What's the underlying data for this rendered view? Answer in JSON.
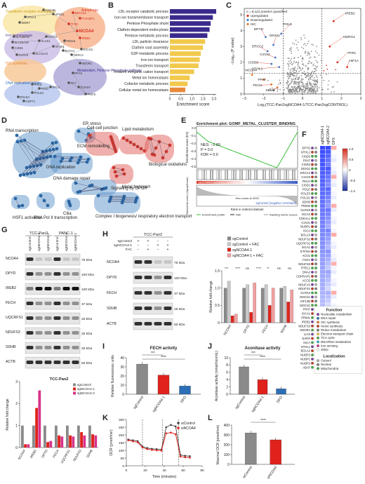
{
  "panel_labels": {
    "A": "A",
    "B": "B",
    "C": "C",
    "D": "D",
    "E": "E",
    "F": "F",
    "G": "G",
    "H": "H",
    "I": "I",
    "J": "J",
    "K": "K",
    "L": "L"
  },
  "colors": {
    "upregulated": "#d7301f",
    "downregulated": "#3a7bd5",
    "isc": "#e08030",
    "purple": "#5b3a94",
    "yellow": "#f4c542",
    "bar_purple": "#3b2a8c",
    "bar_yellow": "#f2c94c",
    "grey": "#9a9a9a",
    "red": "#e0221c",
    "pink": "#d6338a",
    "blue": "#2b6fb6"
  },
  "panelA": {
    "clusters": [
      "Transferrin receptor endocytosis",
      "Iron homeostasis",
      "Autophagy",
      "ISC synthesis",
      "DNA replication/ repair",
      "Metabolism, Pentose Phosphate pathway"
    ],
    "genes": [
      "AAGAB",
      "AP2S1",
      "RB1CD1",
      "AP2A1",
      "WDR7",
      "TFRC",
      "NCOA4",
      "SLC25A37",
      "TAX1BP1",
      "SLC25A28",
      "ALAS1",
      "IREB2",
      "EGLN1",
      "CISD1",
      "CIAO3",
      "GLRX3",
      "SLC11A2",
      "AP1B1",
      "FBXL5",
      "BACH1",
      "HERC2",
      "NDOR1",
      "POLD1",
      "FEN1",
      "RFC1",
      "POLE",
      "TKT",
      "COASY",
      "PMVK",
      "GSPT1",
      "POLE4",
      "PFAS"
    ]
  },
  "panelB": {
    "chart_data": {
      "type": "bar",
      "orientation": "horizontal",
      "categories": [
        "LDL receptor catabolic process",
        "Iron ion transmembrane transport",
        "Pentose Phosphate shunt",
        "Clathrin-dependent endocytosis",
        "Pentose metabolic process",
        "LDL particle clearance",
        "Clathrin coat assembly",
        "G3P metabolic process",
        "Iron ion transport",
        "Transferrin transport",
        "Trivalent inorganic cation transport",
        "Metal ion homeostasis",
        "Cofactor metabolic process",
        "Cellular metal ion homeostasis"
      ],
      "values": [
        2.1,
        1.95,
        1.85,
        1.8,
        1.7,
        1.6,
        1.5,
        1.4,
        1.35,
        1.3,
        1.1,
        0.9,
        0.8,
        0.7
      ],
      "bar_colors": [
        "purple",
        "purple",
        "purple",
        "purple",
        "purple",
        "yellow",
        "yellow",
        "yellow",
        "yellow",
        "yellow",
        "yellow",
        "yellow",
        "yellow",
        "orange"
      ],
      "xlabel": "Enrichment score",
      "ticks": [
        "0",
        "0.5",
        "1.0",
        "1.5",
        "2.0"
      ],
      "xlim": [
        0,
        2.1
      ]
    }
  },
  "panelC": {
    "chart_data": {
      "type": "scatter",
      "xlabel": "Log₂(TCC-Pan2sgNCOA4-1/TCC-Pan2sgCONTROL)",
      "ylabel": "−Log₁₀ (P value)",
      "xticks": [
        "−3",
        "−2",
        "−1",
        "0",
        "1",
        "2",
        "3"
      ],
      "yticks": [
        "0",
        "1",
        "2",
        "3",
        "4",
        "5"
      ],
      "xlim": [
        -3,
        3
      ],
      "ylim": [
        0,
        5.4
      ],
      "legend": [
        "n = 8,122 proteins quantified",
        "Upregulated",
        "Downregulated",
        "ISC"
      ],
      "labels_left": [
        "DPYD",
        "POLE",
        "DDX11",
        "ERCC2",
        "CIAO3",
        "CISD3",
        "NTHL1",
        "NCOA4",
        "PPAT",
        "FECH",
        "SDHB"
      ],
      "labels_right": [
        "IREB2",
        "NDRG1",
        "TFRC",
        "HIF1A"
      ],
      "hline_y": 1.3,
      "vlines_x": [
        -1,
        1
      ]
    }
  },
  "panelD": {
    "modules": [
      "ER stress",
      "ECM remodelling",
      "Cell-cell junction",
      "Lipid metabolism",
      "RNA transcription",
      "Biological oxidations",
      "DNA replication",
      "Metal transport",
      "DNA damage repair",
      "Signaling by GPCR",
      "HSF1 activation",
      "RNA Pol II transcription",
      "Cilia",
      "Complex I biogenesis/ respiratory electron transport"
    ]
  },
  "panelE": {
    "title": "Enrichment plot: GOMF_METAL_CLUSTER_BINDING",
    "stats": [
      "NES: −2.69",
      "P = 0.0",
      "FDR = 0.0"
    ],
    "ylabel_top": "Enrichment score (ES)",
    "ylabel_bottom": "Ranked list metric (Signal2Noise)",
    "pos_label": "sgNCOA4-1 (positively correlated)",
    "neg_label": "sgControl (negative correlated)",
    "zero_label": "Zero cross at 4226",
    "xlabel": "Rank in ordered dataset",
    "legend": [
      "Enrichment profile",
      "Hits",
      "Ranking metric scores"
    ],
    "yticks": [
      "0.0",
      "−0.1",
      "−0.2",
      "−0.3",
      "−0.4",
      "−0.5"
    ]
  },
  "panelF": {
    "columns": [
      "sgNCOA4-1",
      "sgNCOA4-2",
      "DFX"
    ],
    "genes": [
      "DPYD",
      "NTHL1",
      "CISD2",
      "PPAT",
      "CISD3",
      "DDX11",
      "ERCC2",
      "CIAO3",
      "FECH",
      "CISD1",
      "POLE",
      "POLE3",
      "POLD1",
      "SDHB",
      "PRIM2",
      "GLRX5",
      "ISCA2",
      "CDKAL1",
      "CIAO1",
      "NUBPL",
      "ISCU",
      "BOLA3",
      "NDUFS2",
      "UQCRFS1",
      "ISCA1",
      "ETFDH",
      "ACO1",
      "FDX1",
      "NDUFS8",
      "RTEL1",
      "DNA2",
      "CDKRAP1",
      "ACO2",
      "NDUFV2",
      "NDUFS1",
      "GLRX3",
      "MOCS1",
      "KIF13B",
      "MOCS1",
      "PPAT",
      "ISCA1",
      "PRIM1",
      "IREB2",
      "NDUFS3",
      "NDOR1",
      "LIAS",
      "NARS",
      "ISCA",
      "NTHL1",
      "BOLA2",
      "NUBP2",
      "NUBP1",
      "NUBP2",
      "ABAT"
    ],
    "scale_max": "1.0",
    "scale_ticks": [
      "1.0",
      "0.5",
      "0",
      "−0.5",
      "−1.0"
    ],
    "function_title": "Function",
    "functions": [
      "Nucleotide metabolism",
      "DNA repair",
      "ISC synthesis",
      "Heme synthesis",
      "Redox metabolism",
      "Electron transport chain",
      "TCA cycle",
      "DNA/RNA metabolism",
      "Iron sensing",
      "Other"
    ],
    "function_colors": [
      "#7b3fa0",
      "#2b6fb6",
      "#e08030",
      "#c23b22",
      "#7f7f7f",
      "#f2c94c",
      "#4aa84a",
      "#3bb0c9",
      "#d6338a",
      "#ffffff"
    ],
    "localization_title": "Localization",
    "localizations": [
      "Cytosol",
      "Nuclear",
      "Mitochondria"
    ],
    "localization_colors": [
      "#b0b0b0",
      "#7f7f7f",
      "#4aa84a"
    ]
  },
  "panelG": {
    "cell_lines": [
      "TCC-Pan2",
      "PANC-1"
    ],
    "lanes": [
      "sgControl",
      "sgNCOA4-1",
      "sgNCOA4-2",
      "sgControl",
      "sgNCOA4-1",
      "sgNCOA4-2"
    ],
    "proteins": [
      "NCOA4",
      "DPYD",
      "IREB2",
      "FECH",
      "UQCRFS1",
      "NDUFS3",
      "SDHB",
      "ACTB"
    ],
    "kda": [
      "75 kDa",
      "100 kDa",
      "100 kDa",
      "37 kDa",
      "25 kDa",
      "25 kDa",
      "25 kDa",
      "50 kDa"
    ],
    "chart_data": {
      "type": "bar",
      "title": "TCC-Pan2",
      "categories": [
        "NCOA4",
        "IREB2",
        "DPYD",
        "FECH",
        "UQCRFS1",
        "NDUFS3",
        "SDHB"
      ],
      "series": [
        {
          "name": "sgControl",
          "values": [
            1,
            1,
            1,
            1,
            1,
            1,
            1
          ]
        },
        {
          "name": "sgNCOA4-1",
          "values": [
            0.15,
            1.8,
            0.25,
            0.55,
            0.55,
            0.7,
            0.6
          ]
        },
        {
          "name": "sgNCOA4-2",
          "values": [
            0.15,
            2.6,
            0.3,
            0.5,
            0.5,
            0.55,
            0.55
          ]
        }
      ],
      "ylabel": "Relative fold change",
      "ylim": [
        0,
        3
      ],
      "yticks": [
        "0",
        "1",
        "2",
        "3"
      ]
    }
  },
  "panelH": {
    "cell_line": "TCC-Pan2",
    "rows": [
      "sgControl",
      "sgNCOA4-1",
      "FAC"
    ],
    "lane_signs": [
      [
        "+",
        "+",
        "−",
        "−"
      ],
      [
        "−",
        "−",
        "+",
        "+"
      ],
      [
        "−",
        "+",
        "−",
        "+"
      ]
    ],
    "proteins": [
      "NCOA4",
      "DPYD",
      "FECH",
      "SDHB",
      "ACTB"
    ],
    "kda": [
      "75 kDa",
      "100 kDa",
      "37 kDa",
      "25 kDa",
      "50 kDa"
    ],
    "chart_data": {
      "type": "bar",
      "categories": [
        "NCOA4",
        "DPYD",
        "FECH",
        "SDHB"
      ],
      "series": [
        {
          "name": "sgControl",
          "values": [
            1,
            1,
            1,
            1
          ]
        },
        {
          "name": "sgControl + FAC",
          "values": [
            1.2,
            1.1,
            1.1,
            1.05
          ]
        },
        {
          "name": "sgNCOA4-1",
          "values": [
            0.2,
            0.3,
            0.5,
            0.6
          ]
        },
        {
          "name": "sgNCOA4-1 + FAC",
          "values": [
            0.25,
            1.15,
            1.0,
            0.95
          ]
        }
      ],
      "ylabel": "Relative fold change",
      "ylim": [
        0,
        1.5
      ],
      "yticks": [
        "0",
        "0.5",
        "1.0",
        "1.5"
      ],
      "sig": [
        "***",
        "****",
        "ns",
        "****",
        "**",
        "ns",
        "ns"
      ]
    }
  },
  "panelI": {
    "chart_data": {
      "type": "bar",
      "title": "FECH activity",
      "categories": [
        "sgControl",
        "sgNCOA4-1",
        "DFO"
      ],
      "values": [
        33,
        21,
        9
      ],
      "ylabel": "Relative fluorescence units",
      "ylim": [
        0,
        40
      ],
      "yticks": [
        "0",
        "10",
        "20",
        "30",
        "40"
      ],
      "sig": [
        "***",
        "****"
      ]
    }
  },
  "panelJ": {
    "chart_data": {
      "type": "bar",
      "title": "Aconitase activity",
      "categories": [
        "sgControl",
        "sgNCOA4-1",
        "DFO"
      ],
      "values": [
        7.5,
        4.0,
        1.5
      ],
      "ylabel": "Aconitase activity (nmol/min/mL)",
      "ylim": [
        0,
        10
      ],
      "yticks": [
        "0",
        "2",
        "4",
        "6",
        "8",
        "10"
      ],
      "sig": [
        "***",
        "****"
      ]
    }
  },
  "panelK": {
    "chart_data": {
      "type": "line",
      "xlabel": "Time (minutes)",
      "ylabel": "OCR (pmol/min)",
      "xticks": [
        "0",
        "20",
        "40",
        "60",
        "80"
      ],
      "yticks": [
        "0",
        "50",
        "100",
        "150",
        "200",
        "250",
        "300"
      ],
      "xlim": [
        0,
        80
      ],
      "ylim": [
        0,
        300
      ],
      "series": [
        {
          "name": "siControl",
          "x": [
            2,
            7,
            12,
            17,
            22,
            27,
            32,
            37,
            42,
            47,
            52,
            57,
            62,
            67
          ],
          "y": [
            170,
            165,
            160,
            125,
            115,
            110,
            108,
            105,
            250,
            265,
            255,
            70,
            65,
            62
          ]
        },
        {
          "name": "siNCOA4",
          "x": [
            2,
            7,
            12,
            17,
            22,
            27,
            32,
            37,
            42,
            47,
            52,
            57,
            62,
            67
          ],
          "y": [
            165,
            158,
            152,
            118,
            108,
            103,
            100,
            98,
            210,
            215,
            205,
            60,
            55,
            52
          ]
        }
      ],
      "injections": [
        17,
        38,
        55
      ]
    }
  },
  "panelL": {
    "chart_data": {
      "type": "bar",
      "categories": [
        "siControl",
        "siNCOA4"
      ],
      "values": [
        320,
        250
      ],
      "ylabel": "Maximal OCR (pmol/min)",
      "ylim": [
        0,
        400
      ],
      "yticks": [
        "0",
        "100",
        "200",
        "300",
        "400"
      ],
      "sig": [
        "****"
      ]
    }
  }
}
